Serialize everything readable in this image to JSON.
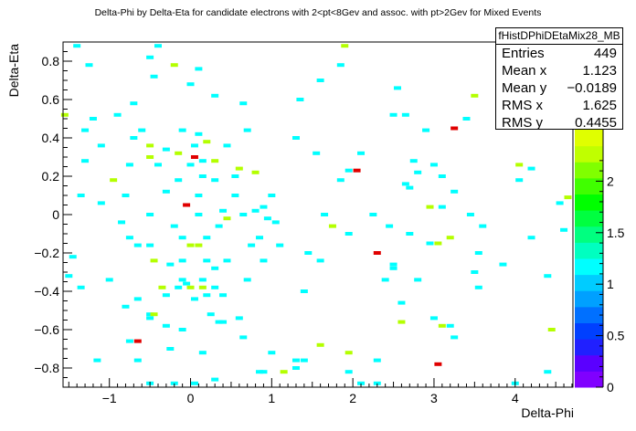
{
  "chart_data": {
    "type": "heatmap",
    "title": "Delta-Phi by Delta-Eta for candidate electrons with 2<pt<8Gev and assoc. with pt>2Gev for Mixed Events",
    "xlabel": "Delta-Phi",
    "ylabel": "Delta-Eta",
    "xlim": [
      -1.571,
      4.712
    ],
    "ylim": [
      -0.9,
      0.9
    ],
    "xticks": [
      -1,
      0,
      1,
      2,
      3,
      4
    ],
    "xtick_labels": [
      "−1",
      "0",
      "1",
      "2",
      "3",
      "4"
    ],
    "yticks": [
      -0.8,
      -0.6,
      -0.4,
      -0.2,
      0,
      0.2,
      0.4,
      0.6,
      0.8
    ],
    "ytick_labels": [
      "−0.8",
      "−0.6",
      "−0.4",
      "−0.2",
      "0",
      "0.2",
      "0.4",
      "0.6",
      "0.8"
    ],
    "colorbar": {
      "ticks": [
        0,
        0.5,
        1,
        1.5,
        2
      ],
      "tick_labels": [
        "0",
        "0.5",
        "1",
        "1.5",
        "2"
      ],
      "range": [
        0,
        2.5
      ],
      "colors": [
        "#8000ff",
        "#5a00ff",
        "#2020ff",
        "#0040ff",
        "#0070ff",
        "#00a0ff",
        "#00ccff",
        "#00ffff",
        "#00ffc0",
        "#00ff80",
        "#00ff40",
        "#00ff00",
        "#40ff00",
        "#80ff00",
        "#c0ff00",
        "#e0ff00"
      ]
    },
    "grid": false,
    "legend": "top-right",
    "bins": [
      {
        "x": -1.4,
        "y": 0.88,
        "v": 1
      },
      {
        "x": -0.4,
        "y": 0.88,
        "v": 1
      },
      {
        "x": 1.9,
        "y": 0.88,
        "v": 2
      },
      {
        "x": -0.5,
        "y": 0.82,
        "v": 1
      },
      {
        "x": -1.25,
        "y": 0.78,
        "v": 1
      },
      {
        "x": -0.2,
        "y": 0.78,
        "v": 2
      },
      {
        "x": 0.1,
        "y": 0.76,
        "v": 1
      },
      {
        "x": 1.85,
        "y": 0.78,
        "v": 1
      },
      {
        "x": -0.45,
        "y": 0.72,
        "v": 1
      },
      {
        "x": 0.0,
        "y": 0.68,
        "v": 1
      },
      {
        "x": 1.6,
        "y": 0.7,
        "v": 1
      },
      {
        "x": 3.5,
        "y": 0.62,
        "v": 2
      },
      {
        "x": 2.55,
        "y": 0.66,
        "v": 1
      },
      {
        "x": -0.7,
        "y": 0.58,
        "v": 1
      },
      {
        "x": 0.3,
        "y": 0.62,
        "v": 1
      },
      {
        "x": -1.55,
        "y": 0.52,
        "v": 2
      },
      {
        "x": -1.2,
        "y": 0.5,
        "v": 1
      },
      {
        "x": -0.9,
        "y": 0.52,
        "v": 1
      },
      {
        "x": 0.65,
        "y": 0.58,
        "v": 1
      },
      {
        "x": 1.35,
        "y": 0.6,
        "v": 1
      },
      {
        "x": 2.5,
        "y": 0.52,
        "v": 1
      },
      {
        "x": 2.65,
        "y": 0.52,
        "v": 1
      },
      {
        "x": 3.4,
        "y": 0.5,
        "v": 1
      },
      {
        "x": -1.3,
        "y": 0.44,
        "v": 1
      },
      {
        "x": -0.6,
        "y": 0.44,
        "v": 1
      },
      {
        "x": -0.1,
        "y": 0.44,
        "v": 1
      },
      {
        "x": 0.1,
        "y": 0.42,
        "v": 1
      },
      {
        "x": 0.7,
        "y": 0.44,
        "v": 1
      },
      {
        "x": 1.3,
        "y": 0.4,
        "v": 1
      },
      {
        "x": 2.9,
        "y": 0.44,
        "v": 1
      },
      {
        "x": 3.25,
        "y": 0.45,
        "v": 3
      },
      {
        "x": -1.1,
        "y": 0.36,
        "v": 1
      },
      {
        "x": -0.7,
        "y": 0.4,
        "v": 1
      },
      {
        "x": -0.5,
        "y": 0.36,
        "v": 2
      },
      {
        "x": -0.3,
        "y": 0.34,
        "v": 1
      },
      {
        "x": 0.05,
        "y": 0.36,
        "v": 1
      },
      {
        "x": 0.2,
        "y": 0.38,
        "v": 2
      },
      {
        "x": 0.45,
        "y": 0.36,
        "v": 1
      },
      {
        "x": 1.55,
        "y": 0.32,
        "v": 1
      },
      {
        "x": 2.1,
        "y": 0.32,
        "v": 1
      },
      {
        "x": -1.3,
        "y": 0.28,
        "v": 1
      },
      {
        "x": -0.75,
        "y": 0.26,
        "v": 1
      },
      {
        "x": -0.5,
        "y": 0.3,
        "v": 2
      },
      {
        "x": -0.15,
        "y": 0.32,
        "v": 2
      },
      {
        "x": 0.05,
        "y": 0.3,
        "v": 3
      },
      {
        "x": 0.15,
        "y": 0.28,
        "v": 1
      },
      {
        "x": 0.3,
        "y": 0.28,
        "v": 2
      },
      {
        "x": -0.4,
        "y": 0.26,
        "v": 1
      },
      {
        "x": 0.0,
        "y": 0.26,
        "v": 1
      },
      {
        "x": 0.6,
        "y": 0.24,
        "v": 2
      },
      {
        "x": 0.8,
        "y": 0.22,
        "v": 2
      },
      {
        "x": 2.75,
        "y": 0.28,
        "v": 1
      },
      {
        "x": 3.0,
        "y": 0.26,
        "v": 1
      },
      {
        "x": 1.95,
        "y": 0.23,
        "v": 1
      },
      {
        "x": 2.05,
        "y": 0.23,
        "v": 3
      },
      {
        "x": 2.8,
        "y": 0.22,
        "v": 1
      },
      {
        "x": 4.05,
        "y": 0.26,
        "v": 2
      },
      {
        "x": 4.2,
        "y": 0.24,
        "v": 1
      },
      {
        "x": -0.15,
        "y": 0.18,
        "v": 1
      },
      {
        "x": 0.15,
        "y": 0.2,
        "v": 1
      },
      {
        "x": 0.3,
        "y": 0.18,
        "v": 1
      },
      {
        "x": 0.55,
        "y": 0.2,
        "v": 1
      },
      {
        "x": -0.95,
        "y": 0.18,
        "v": 2
      },
      {
        "x": 1.85,
        "y": 0.18,
        "v": 1
      },
      {
        "x": 3.1,
        "y": 0.2,
        "v": 1
      },
      {
        "x": 4.05,
        "y": 0.18,
        "v": 1
      },
      {
        "x": 2.65,
        "y": 0.16,
        "v": 1
      },
      {
        "x": 2.7,
        "y": 0.14,
        "v": 1
      },
      {
        "x": -1.35,
        "y": 0.1,
        "v": 1
      },
      {
        "x": -0.8,
        "y": 0.1,
        "v": 1
      },
      {
        "x": -0.3,
        "y": 0.12,
        "v": 1
      },
      {
        "x": 0.1,
        "y": 0.1,
        "v": 1
      },
      {
        "x": 0.55,
        "y": 0.1,
        "v": 1
      },
      {
        "x": 1.0,
        "y": 0.1,
        "v": 1
      },
      {
        "x": 3.25,
        "y": 0.12,
        "v": 1
      },
      {
        "x": 4.65,
        "y": 0.09,
        "v": 2
      },
      {
        "x": -1.1,
        "y": 0.06,
        "v": 1
      },
      {
        "x": -0.05,
        "y": 0.05,
        "v": 3
      },
      {
        "x": 0.9,
        "y": 0.04,
        "v": 1
      },
      {
        "x": 2.95,
        "y": 0.04,
        "v": 2
      },
      {
        "x": 3.1,
        "y": 0.04,
        "v": 1
      },
      {
        "x": 4.55,
        "y": 0.06,
        "v": 1
      },
      {
        "x": -0.5,
        "y": 0.0,
        "v": 1
      },
      {
        "x": 0.1,
        "y": 0.0,
        "v": 1
      },
      {
        "x": 0.4,
        "y": 0.02,
        "v": 1
      },
      {
        "x": 0.65,
        "y": 0.0,
        "v": 1
      },
      {
        "x": 0.8,
        "y": 0.02,
        "v": 1
      },
      {
        "x": 1.65,
        "y": 0.0,
        "v": 1
      },
      {
        "x": 2.25,
        "y": 0.0,
        "v": 1
      },
      {
        "x": 3.45,
        "y": 0.0,
        "v": 1
      },
      {
        "x": 0.45,
        "y": -0.02,
        "v": 2
      },
      {
        "x": 0.95,
        "y": -0.02,
        "v": 1
      },
      {
        "x": -0.85,
        "y": -0.04,
        "v": 1
      },
      {
        "x": -0.2,
        "y": -0.06,
        "v": 1
      },
      {
        "x": 0.35,
        "y": -0.06,
        "v": 1
      },
      {
        "x": 1.05,
        "y": -0.04,
        "v": 1
      },
      {
        "x": 1.75,
        "y": -0.06,
        "v": 2
      },
      {
        "x": 2.45,
        "y": -0.06,
        "v": 1
      },
      {
        "x": 3.6,
        "y": -0.06,
        "v": 1
      },
      {
        "x": 4.6,
        "y": -0.08,
        "v": 1
      },
      {
        "x": -0.75,
        "y": -0.12,
        "v": 1
      },
      {
        "x": -0.1,
        "y": -0.12,
        "v": 1
      },
      {
        "x": 0.2,
        "y": -0.12,
        "v": 1
      },
      {
        "x": 0.85,
        "y": -0.12,
        "v": 1
      },
      {
        "x": 1.95,
        "y": -0.1,
        "v": 1
      },
      {
        "x": 2.7,
        "y": -0.1,
        "v": 1
      },
      {
        "x": 3.2,
        "y": -0.12,
        "v": 2
      },
      {
        "x": 4.2,
        "y": -0.12,
        "v": 1
      },
      {
        "x": -0.65,
        "y": -0.16,
        "v": 1
      },
      {
        "x": -0.5,
        "y": -0.16,
        "v": 1
      },
      {
        "x": 0.0,
        "y": -0.16,
        "v": 2
      },
      {
        "x": 0.1,
        "y": -0.16,
        "v": 2
      },
      {
        "x": 0.75,
        "y": -0.16,
        "v": 1
      },
      {
        "x": 1.1,
        "y": -0.16,
        "v": 1
      },
      {
        "x": 2.95,
        "y": -0.15,
        "v": 1
      },
      {
        "x": 3.05,
        "y": -0.15,
        "v": 2
      },
      {
        "x": 1.45,
        "y": -0.2,
        "v": 1
      },
      {
        "x": 2.3,
        "y": -0.2,
        "v": 3
      },
      {
        "x": 3.55,
        "y": -0.2,
        "v": 1
      },
      {
        "x": -1.45,
        "y": -0.22,
        "v": 1
      },
      {
        "x": -0.45,
        "y": -0.24,
        "v": 2
      },
      {
        "x": -0.1,
        "y": -0.24,
        "v": 1
      },
      {
        "x": 0.2,
        "y": -0.24,
        "v": 1
      },
      {
        "x": 0.45,
        "y": -0.24,
        "v": 1
      },
      {
        "x": 0.9,
        "y": -0.24,
        "v": 1
      },
      {
        "x": 1.6,
        "y": -0.24,
        "v": 1
      },
      {
        "x": 2.5,
        "y": -0.26,
        "v": 1
      },
      {
        "x": 3.85,
        "y": -0.26,
        "v": 1
      },
      {
        "x": -0.25,
        "y": -0.26,
        "v": 1
      },
      {
        "x": 0.3,
        "y": -0.28,
        "v": 1
      },
      {
        "x": 2.5,
        "y": -0.28,
        "v": 1
      },
      {
        "x": -1.5,
        "y": -0.32,
        "v": 1
      },
      {
        "x": 2.4,
        "y": -0.34,
        "v": 1
      },
      {
        "x": 3.5,
        "y": -0.3,
        "v": 1
      },
      {
        "x": 4.4,
        "y": -0.32,
        "v": 1
      },
      {
        "x": -1.0,
        "y": -0.34,
        "v": 1
      },
      {
        "x": -0.1,
        "y": -0.34,
        "v": 1
      },
      {
        "x": -0.05,
        "y": -0.36,
        "v": 1
      },
      {
        "x": 0.15,
        "y": -0.34,
        "v": 1
      },
      {
        "x": 0.7,
        "y": -0.34,
        "v": 1
      },
      {
        "x": 2.8,
        "y": -0.34,
        "v": 1
      },
      {
        "x": -1.35,
        "y": -0.38,
        "v": 1
      },
      {
        "x": -0.35,
        "y": -0.38,
        "v": 2
      },
      {
        "x": -0.15,
        "y": -0.38,
        "v": 1
      },
      {
        "x": 0.0,
        "y": -0.38,
        "v": 2
      },
      {
        "x": 0.15,
        "y": -0.38,
        "v": 2
      },
      {
        "x": 0.3,
        "y": -0.38,
        "v": 1
      },
      {
        "x": 1.4,
        "y": -0.4,
        "v": 1
      },
      {
        "x": 3.55,
        "y": -0.38,
        "v": 1
      },
      {
        "x": -0.65,
        "y": -0.44,
        "v": 1
      },
      {
        "x": -0.3,
        "y": -0.42,
        "v": 1
      },
      {
        "x": 0.05,
        "y": -0.44,
        "v": 1
      },
      {
        "x": 0.2,
        "y": -0.42,
        "v": 1
      },
      {
        "x": 0.4,
        "y": -0.42,
        "v": 1
      },
      {
        "x": 2.6,
        "y": -0.46,
        "v": 1
      },
      {
        "x": -0.8,
        "y": -0.48,
        "v": 1
      },
      {
        "x": -0.5,
        "y": -0.52,
        "v": 1
      },
      {
        "x": -0.5,
        "y": -0.54,
        "v": 1
      },
      {
        "x": -0.45,
        "y": -0.52,
        "v": 2
      },
      {
        "x": 0.25,
        "y": -0.52,
        "v": 1
      },
      {
        "x": 0.6,
        "y": -0.54,
        "v": 1
      },
      {
        "x": 2.6,
        "y": -0.56,
        "v": 2
      },
      {
        "x": 3.0,
        "y": -0.54,
        "v": 1
      },
      {
        "x": 0.35,
        "y": -0.56,
        "v": 1
      },
      {
        "x": 0.4,
        "y": -0.56,
        "v": 1
      },
      {
        "x": -0.3,
        "y": -0.58,
        "v": 1
      },
      {
        "x": -0.1,
        "y": -0.6,
        "v": 1
      },
      {
        "x": 3.1,
        "y": -0.58,
        "v": 2
      },
      {
        "x": 3.2,
        "y": -0.58,
        "v": 1
      },
      {
        "x": 4.45,
        "y": -0.6,
        "v": 2
      },
      {
        "x": -0.75,
        "y": -0.66,
        "v": 1
      },
      {
        "x": -0.65,
        "y": -0.66,
        "v": 3
      },
      {
        "x": 0.65,
        "y": -0.64,
        "v": 1
      },
      {
        "x": 3.25,
        "y": -0.64,
        "v": 1
      },
      {
        "x": 1.6,
        "y": -0.68,
        "v": 2
      },
      {
        "x": -0.25,
        "y": -0.7,
        "v": 1
      },
      {
        "x": 0.15,
        "y": -0.72,
        "v": 1
      },
      {
        "x": 1.0,
        "y": -0.72,
        "v": 1
      },
      {
        "x": 1.95,
        "y": -0.72,
        "v": 2
      },
      {
        "x": -1.15,
        "y": -0.76,
        "v": 1
      },
      {
        "x": -0.65,
        "y": -0.76,
        "v": 1
      },
      {
        "x": 1.3,
        "y": -0.76,
        "v": 1
      },
      {
        "x": 1.4,
        "y": -0.76,
        "v": 1
      },
      {
        "x": 2.3,
        "y": -0.76,
        "v": 1
      },
      {
        "x": 3.05,
        "y": -0.78,
        "v": 3
      },
      {
        "x": 1.3,
        "y": -0.8,
        "v": 1
      },
      {
        "x": 0.85,
        "y": -0.82,
        "v": 1
      },
      {
        "x": 0.9,
        "y": -0.82,
        "v": 1
      },
      {
        "x": 1.15,
        "y": -0.82,
        "v": 2
      },
      {
        "x": 1.95,
        "y": -0.82,
        "v": 1
      },
      {
        "x": 4.4,
        "y": -0.82,
        "v": 1
      },
      {
        "x": 0.3,
        "y": -0.86,
        "v": 1
      },
      {
        "x": -0.2,
        "y": -0.88,
        "v": 1
      },
      {
        "x": 0.05,
        "y": -0.88,
        "v": 1
      },
      {
        "x": 2.1,
        "y": -0.88,
        "v": 1
      },
      {
        "x": 2.3,
        "y": -0.88,
        "v": 1
      },
      {
        "x": 4.0,
        "y": -0.88,
        "v": 1
      },
      {
        "x": -0.5,
        "y": -0.88,
        "v": 1
      }
    ]
  },
  "stats": {
    "name": "fHistDPhiDEtaMix28_MB",
    "entries_label": "Entries",
    "entries": "449",
    "meanx_label": "Mean x",
    "meanx": "1.123",
    "meany_label": "Mean y",
    "meany": "−0.0189",
    "rmsx_label": "RMS x",
    "rmsx": "1.625",
    "rmsy_label": "RMS y",
    "rmsy": "0.4455"
  }
}
